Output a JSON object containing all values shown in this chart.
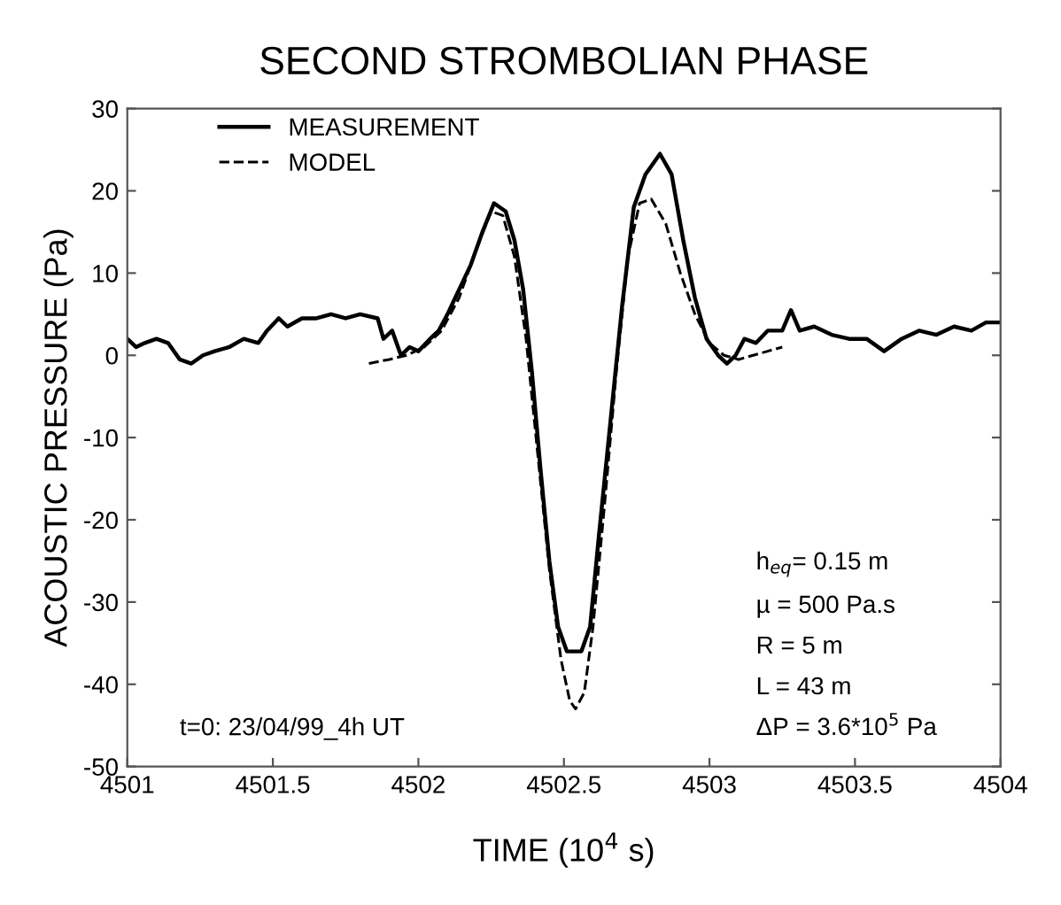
{
  "chart_data": {
    "type": "line",
    "title": "SECOND STROMBOLIAN PHASE",
    "xlabel": "TIME (10$^{4}$ s)",
    "ylabel": "ACOUSTIC PRESSURE (Pa)",
    "xlim": [
      4501,
      4504
    ],
    "xticks": [
      4501,
      4501.5,
      4502,
      4502.5,
      4503,
      4503.5,
      4504
    ],
    "ylim": [
      -50,
      30
    ],
    "yticks": [
      -50,
      -40,
      -30,
      -20,
      -10,
      0,
      10,
      20,
      30
    ],
    "grid": false,
    "legend": "top left",
    "marker": "none",
    "annotations": [
      "t=0: 23/04/99_4h UT",
      "h$_{eq}$= 0.15 m",
      "µ = 500 Pa.s",
      "R = 5 m",
      "L = 43 m",
      "ΔP = 3.6*10$^{5}$ Pa"
    ],
    "series": [
      {
        "name": "MEASUREMENT",
        "color": "#000000",
        "line_style": "solid",
        "x": [
          4501.0,
          4501.03,
          4501.06,
          4501.1,
          4501.14,
          4501.18,
          4501.22,
          4501.26,
          4501.3,
          4501.35,
          4501.4,
          4501.45,
          4501.48,
          4501.52,
          4501.55,
          4501.6,
          4501.65,
          4501.7,
          4501.75,
          4501.8,
          4501.86,
          4501.88,
          4501.91,
          4501.94,
          4501.97,
          4502.0,
          4502.04,
          4502.07,
          4502.1,
          4502.14,
          4502.18,
          4502.22,
          4502.26,
          4502.3,
          4502.33,
          4502.36,
          4502.39,
          4502.42,
          4502.45,
          4502.48,
          4502.51,
          4502.56,
          4502.59,
          4502.62,
          4502.66,
          4502.7,
          4502.74,
          4502.78,
          4502.83,
          4502.87,
          4502.91,
          4502.95,
          4502.99,
          4503.03,
          4503.06,
          4503.09,
          4503.12,
          4503.16,
          4503.2,
          4503.25,
          4503.28,
          4503.31,
          4503.36,
          4503.42,
          4503.48,
          4503.54,
          4503.6,
          4503.66,
          4503.72,
          4503.78,
          4503.84,
          4503.9,
          4503.95,
          4504.0
        ],
        "values": [
          2,
          1,
          1.5,
          2,
          1.5,
          -0.5,
          -1,
          0,
          0.5,
          1,
          2,
          1.5,
          3,
          4.5,
          3.5,
          4.5,
          4.5,
          5,
          4.5,
          5,
          4.5,
          2,
          3,
          0,
          1,
          0.5,
          2,
          3,
          5,
          8,
          11,
          15,
          18.5,
          17.5,
          14,
          8,
          -2,
          -14,
          -25,
          -33,
          -36,
          -36,
          -33,
          -22,
          -8,
          6,
          18,
          22,
          24.5,
          22,
          14,
          7,
          2,
          0,
          -1,
          0,
          2,
          1.5,
          3,
          3,
          5.5,
          3,
          3.5,
          2.5,
          2,
          2,
          0.5,
          2,
          3,
          2.5,
          3.5,
          3,
          4,
          4
        ]
      },
      {
        "name": "MODEL",
        "color": "#000000",
        "line_style": "dashed",
        "x": [
          4501.83,
          4501.9,
          4501.96,
          4502.02,
          4502.08,
          4502.14,
          4502.2,
          4502.25,
          4502.29,
          4502.33,
          4502.37,
          4502.41,
          4502.45,
          4502.49,
          4502.52,
          4502.54,
          4502.57,
          4502.6,
          4502.64,
          4502.68,
          4502.72,
          4502.76,
          4502.8,
          4502.85,
          4502.9,
          4502.95,
          4503.0,
          4503.05,
          4503.1,
          4503.15,
          4503.2,
          4503.25
        ],
        "values": [
          -1,
          -0.5,
          0,
          1,
          3,
          7,
          13,
          17.5,
          17,
          12,
          2,
          -12,
          -26,
          -37,
          -42,
          -43,
          -41,
          -33,
          -18,
          -2,
          12,
          18.5,
          19,
          16,
          10,
          5,
          1.5,
          0,
          -0.5,
          0,
          0.5,
          1
        ]
      }
    ]
  }
}
